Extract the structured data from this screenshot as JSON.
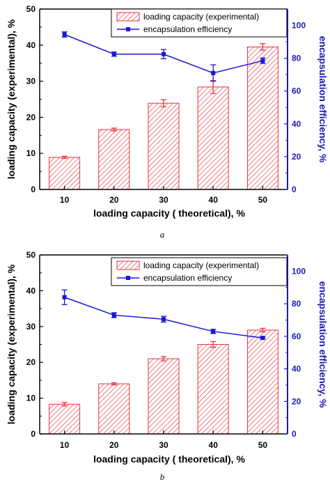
{
  "chart_data": [
    {
      "type": "bar",
      "caption": "a",
      "xlabel": "loading capacity ( theoretical), %",
      "ylabel": "loading capacity (experimental), %",
      "y2label": "encapsulation efficiency, %",
      "categories": [
        "10",
        "20",
        "30",
        "40",
        "50"
      ],
      "ylim": [
        0,
        50
      ],
      "y_ticks": [
        "0",
        "10",
        "20",
        "30",
        "40",
        "50"
      ],
      "y2lim": [
        0,
        110
      ],
      "y2_ticks": [
        "0",
        "20",
        "40",
        "60",
        "80",
        "100"
      ],
      "legend_position": "top-right",
      "series": [
        {
          "name": "loading capacity (experimental)",
          "kind": "bar",
          "axis": "left",
          "values": [
            8.9,
            16.6,
            23.9,
            28.4,
            39.5
          ],
          "errors": [
            0.3,
            0.4,
            1.0,
            1.8,
            0.9
          ]
        },
        {
          "name": "encapsulation efficiency",
          "kind": "line",
          "axis": "right",
          "values": [
            94.5,
            82.5,
            82.5,
            71.0,
            78.5
          ],
          "errors": [
            1.6,
            1.3,
            2.8,
            5.0,
            1.7
          ]
        }
      ],
      "colors": {
        "bar": "#e8323c",
        "line": "#1717d6",
        "right_axis": "#1a1ab8"
      }
    },
    {
      "type": "bar",
      "caption": "b",
      "xlabel": "loading capacity ( theoretical), %",
      "ylabel": "loading capacity (experimental), %",
      "y2label": "encapsulation efficiency, %",
      "categories": [
        "10",
        "20",
        "30",
        "40",
        "50"
      ],
      "ylim": [
        0,
        50
      ],
      "y_ticks": [
        "0",
        "10",
        "20",
        "30",
        "40",
        "50"
      ],
      "y2lim": [
        0,
        110
      ],
      "y2_ticks": [
        "0",
        "20",
        "40",
        "60",
        "80",
        "100"
      ],
      "legend_position": "top-right",
      "series": [
        {
          "name": "loading capacity (experimental)",
          "kind": "bar",
          "axis": "left",
          "values": [
            8.3,
            14.0,
            21.0,
            25.0,
            29.0
          ],
          "errors": [
            0.5,
            0.3,
            0.6,
            0.8,
            0.5
          ]
        },
        {
          "name": "encapsulation efficiency",
          "kind": "line",
          "axis": "right",
          "values": [
            84.0,
            73.0,
            70.5,
            63.0,
            59.0
          ],
          "errors": [
            4.5,
            1.5,
            1.8,
            1.3,
            0.6
          ]
        }
      ],
      "colors": {
        "bar": "#e8323c",
        "line": "#1717d6",
        "right_axis": "#1a1ab8"
      }
    }
  ]
}
